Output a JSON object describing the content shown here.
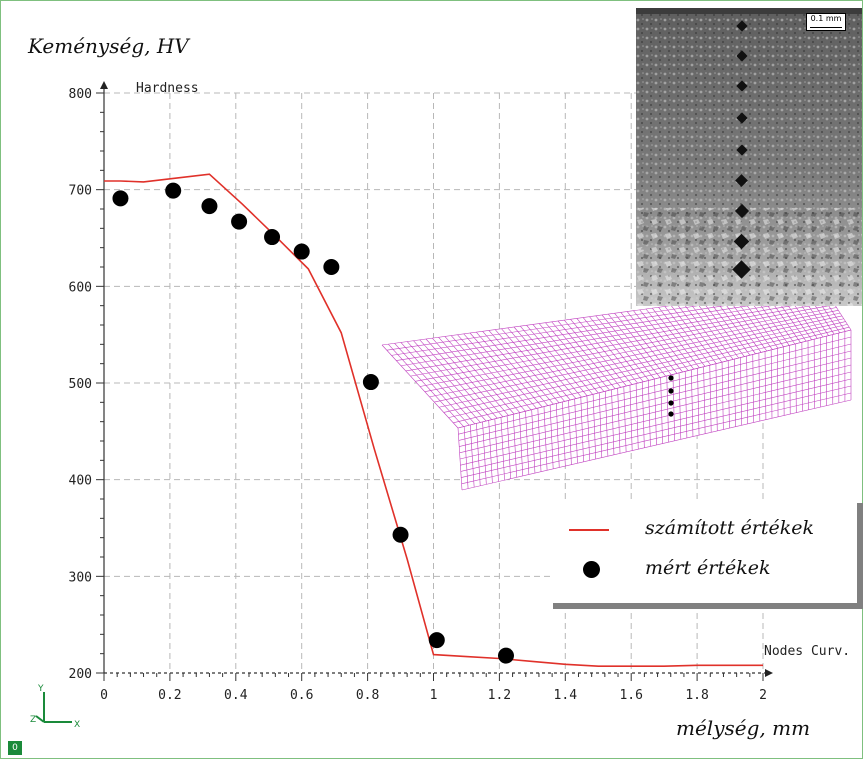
{
  "chart_data": {
    "type": "line",
    "ylabel": "Keménység, HV",
    "xlabel": "mélység, mm",
    "inner_ylabel": "Hardness",
    "inner_xlabel": "Nodes Curv.",
    "xlim": [
      0,
      2
    ],
    "ylim": [
      200,
      800
    ],
    "xticks": [
      "0",
      "0.2",
      "0.4",
      "0.6",
      "0.8",
      "1",
      "1.2",
      "1.4",
      "1.6",
      "1.8",
      "2"
    ],
    "yticks": [
      "200",
      "300",
      "400",
      "500",
      "600",
      "700",
      "800"
    ],
    "grid": true,
    "legend_position": "bottom-right",
    "series": [
      {
        "name": "számított értékek",
        "kind": "line",
        "color": "#e0312a",
        "x": [
          0,
          0.05,
          0.12,
          0.22,
          0.32,
          0.42,
          0.52,
          0.62,
          0.72,
          0.82,
          0.92,
          1.0,
          1.1,
          1.2,
          1.3,
          1.4,
          1.5,
          1.6,
          1.7,
          1.8,
          1.9,
          2.0
        ],
        "y": [
          709,
          709,
          708,
          712,
          716,
          685,
          652,
          618,
          552,
          432,
          318,
          219,
          217,
          215,
          212,
          209,
          207,
          207,
          207,
          208,
          208,
          208
        ]
      },
      {
        "name": "mért értékek",
        "kind": "scatter",
        "color": "#000000",
        "x": [
          0.05,
          0.21,
          0.32,
          0.41,
          0.51,
          0.6,
          0.69,
          0.81,
          0.9,
          1.01,
          1.22
        ],
        "y": [
          691,
          699,
          683,
          667,
          651,
          636,
          620,
          501,
          343,
          234,
          218
        ]
      }
    ]
  },
  "inset": {
    "micrograph_scale": "0.1 mm",
    "mesh_color": "#c040c0"
  },
  "axis_triad": {
    "x": "X",
    "y": "Y",
    "z": "Z"
  },
  "corner_badge": "0"
}
